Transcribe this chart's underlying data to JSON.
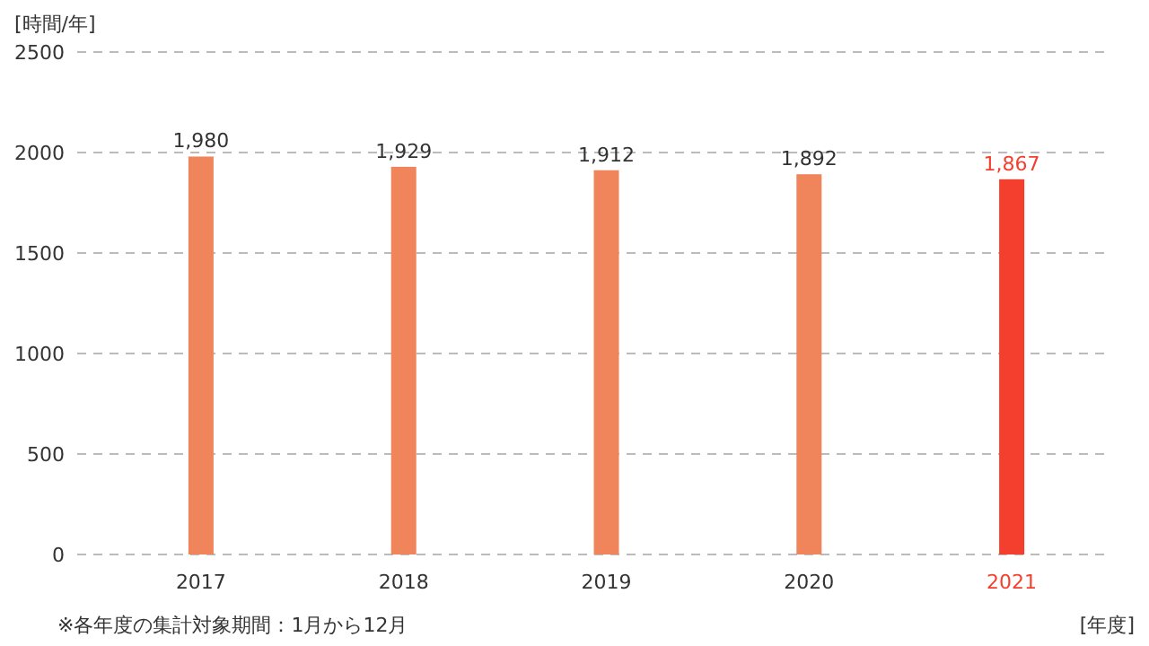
{
  "chart_data": {
    "type": "bar",
    "ylabel": "[時間/年]",
    "xlabel": "[年度]",
    "categories": [
      "2017",
      "2018",
      "2019",
      "2020",
      "2021"
    ],
    "values": [
      1980,
      1929,
      1912,
      1892,
      1867
    ],
    "colors": [
      "#f0845a",
      "#f0845a",
      "#f0845a",
      "#f0845a",
      "#f43f2f"
    ],
    "value_labels": [
      "1,980",
      "1,929",
      "1,912",
      "1,892",
      "1,867"
    ],
    "ylim": [
      0,
      2500
    ],
    "yticks": [
      0,
      500,
      1000,
      1500,
      2000,
      2500
    ],
    "grid": "y",
    "annotations": [
      "※各年度の集計対象期間：1月から12月"
    ]
  }
}
